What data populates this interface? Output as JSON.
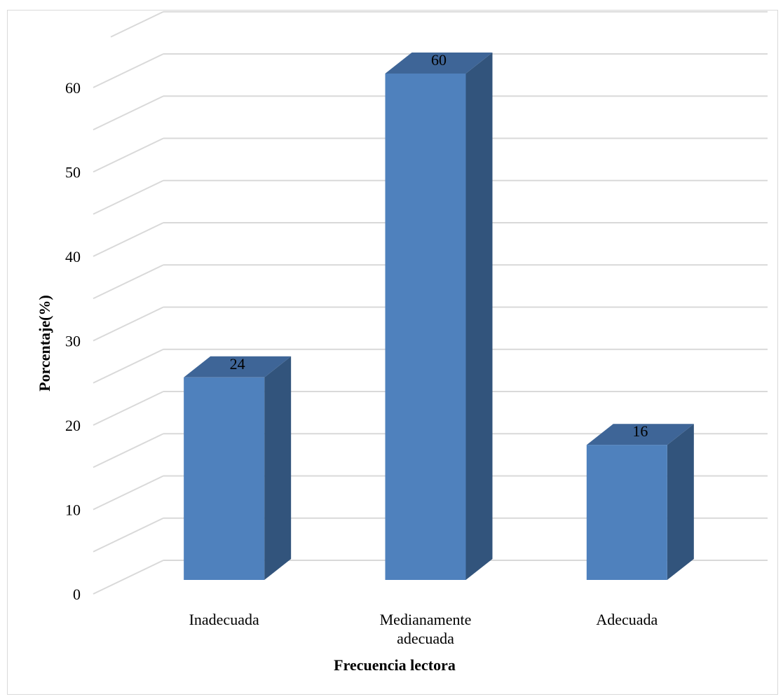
{
  "chart_data": {
    "type": "bar",
    "style": "3d-column",
    "categories": [
      "Inadecuada",
      "Medianamente adecuada",
      "Adecuada"
    ],
    "category_lines": [
      [
        "Inadecuada"
      ],
      [
        "Medianamente",
        "adecuada"
      ],
      [
        "Adecuada"
      ]
    ],
    "values": [
      24,
      60,
      16
    ],
    "data_labels": [
      "24",
      "60",
      "16"
    ],
    "title": "",
    "xlabel": "Frecuencia lectora",
    "ylabel": "Porcentaje(%)",
    "ylim": [
      0,
      60
    ],
    "yticks": [
      0,
      10,
      20,
      30,
      40,
      50,
      60
    ],
    "ytick_labels": [
      "0",
      "10",
      "20",
      "30",
      "40",
      "50",
      "60"
    ],
    "grid": true,
    "legend": "none",
    "colors": {
      "bar_front": "#4f81bd",
      "bar_side": "#32547c",
      "bar_top": "#3e6597",
      "gridline": "#d9d9d9"
    }
  }
}
